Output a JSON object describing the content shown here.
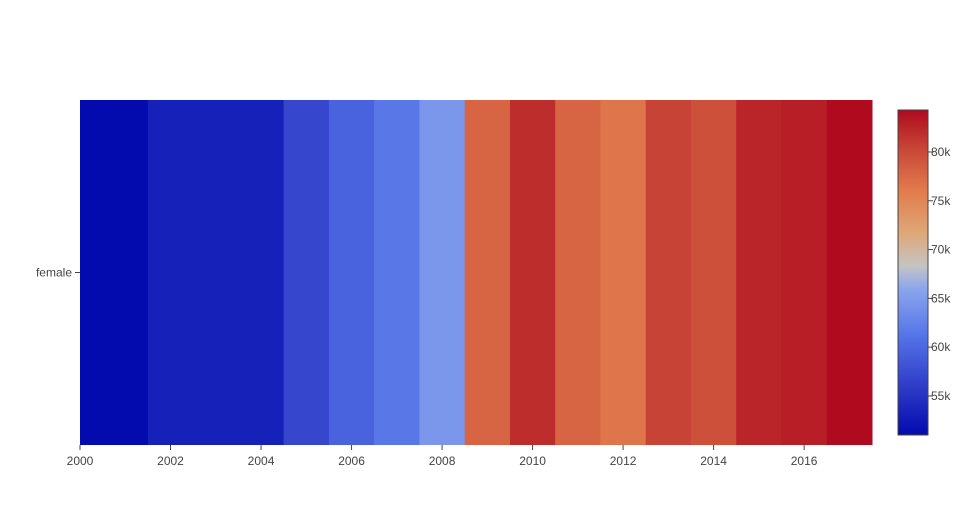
{
  "chart_data": {
    "type": "heatmap",
    "title": "",
    "xlabel": "",
    "ylabel": "",
    "y_categories": [
      "female"
    ],
    "x": [
      2000,
      2001,
      2002,
      2003,
      2004,
      2005,
      2006,
      2007,
      2008,
      2009,
      2010,
      2011,
      2012,
      2013,
      2014,
      2015,
      2016,
      2017
    ],
    "z": [
      [
        51000,
        51000,
        53200,
        53200,
        53200,
        57000,
        59500,
        61500,
        64500,
        77800,
        82000,
        77800,
        76500,
        80500,
        79500,
        82500,
        83000,
        84300
      ]
    ],
    "x_ticks": [
      "2000",
      "2002",
      "2004",
      "2006",
      "2008",
      "2010",
      "2012",
      "2014",
      "2016"
    ],
    "x_tick_values": [
      2000,
      2002,
      2004,
      2006,
      2008,
      2010,
      2012,
      2014,
      2016
    ],
    "xlim": [
      2000,
      2017.5
    ],
    "colorscale": "coolwarm",
    "colorbar": {
      "range": [
        51000,
        84300
      ],
      "ticks": [
        "55k",
        "60k",
        "65k",
        "70k",
        "75k",
        "80k"
      ],
      "tick_values": [
        55000,
        60000,
        65000,
        70000,
        75000,
        80000
      ]
    },
    "grid": false
  }
}
